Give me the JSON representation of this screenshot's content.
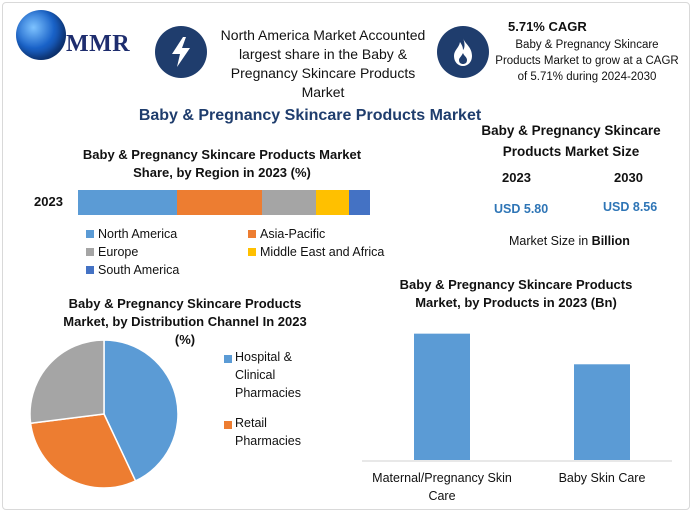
{
  "brand": {
    "logo_text": "MMR"
  },
  "callout": {
    "text": "North America Market Accounted largest share in the Baby & Pregnancy Skincare Products Market",
    "icon": "lightning-icon"
  },
  "cagr": {
    "title": "5.71% CAGR",
    "text": "Baby & Pregnancy Skincare Products Market to grow at a CAGR of 5.71% during 2024-2030",
    "icon": "flame-icon"
  },
  "main_title": "Baby & Pregnancy Skincare Products Market",
  "market_size": {
    "title": "Baby & Pregnancy Skincare Products Market Size",
    "year_a": "2023",
    "year_b": "2030",
    "value_a": "USD 5.80",
    "value_b": "USD 8.56",
    "note_prefix": "Market Size in ",
    "note_bold": "Billion"
  },
  "colors": {
    "north_america": "#5b9bd5",
    "asia_pacific": "#ed7d31",
    "europe": "#a5a5a5",
    "mea": "#ffc000",
    "south_america": "#4472c4",
    "icon_bg": "#1f3d6d"
  },
  "chart_data": [
    {
      "type": "bar",
      "orientation": "horizontal-stacked",
      "title": "Baby & Pregnancy Skincare Products Market Share, by Region in 2023 (%)",
      "categories": [
        "2023"
      ],
      "series": [
        {
          "name": "North America",
          "values": [
            33
          ]
        },
        {
          "name": "Asia-Pacific",
          "values": [
            28
          ]
        },
        {
          "name": "Europe",
          "values": [
            18
          ]
        },
        {
          "name": "Middle East and Africa",
          "values": [
            11
          ]
        },
        {
          "name": "South America",
          "values": [
            7
          ]
        }
      ],
      "legend": "bottom"
    },
    {
      "type": "pie",
      "title": "Baby & Pregnancy Skincare Products Market, by Distribution Channel In 2023 (%)",
      "slices": [
        {
          "name": "Hospital & Clinical Pharmacies",
          "value": 43
        },
        {
          "name": "Retail Pharmacies",
          "value": 30
        },
        {
          "name": "",
          "value": 27
        }
      ],
      "legend_items": [
        {
          "label_lines": [
            "Hospital &",
            "Clinical",
            "Pharmacies"
          ]
        },
        {
          "label_lines": [
            "Retail",
            "Pharmacies"
          ]
        }
      ],
      "legend": "right"
    },
    {
      "type": "bar",
      "title": "Baby & Pregnancy Skincare Products Market, by Products in 2023 (Bn)",
      "categories": [
        "Maternal/Pregnancy Skin Care",
        "Baby Skin Care"
      ],
      "category_lines": [
        [
          "Maternal/Pregnancy Skin",
          "Care"
        ],
        [
          "Baby Skin Care"
        ]
      ],
      "values": [
        3.3,
        2.5
      ],
      "ylim": [
        0,
        3.5
      ],
      "grid": false
    }
  ]
}
